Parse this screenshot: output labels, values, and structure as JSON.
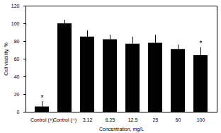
{
  "chart_data": {
    "type": "bar",
    "x_label": "Concentration, mg/L",
    "y_label": "Cell viability, %",
    "categories": [
      "Control (+)",
      "Control (−)",
      "3.12",
      "6.25",
      "12.5",
      "25",
      "50",
      "100"
    ],
    "values": [
      6,
      100,
      85,
      82,
      77,
      78,
      71,
      64
    ],
    "errors": [
      6,
      4,
      7,
      5,
      8,
      9,
      5,
      9
    ],
    "color": "#000000",
    "ylim": [
      0,
      120
    ],
    "yticks": [
      0,
      20,
      40,
      60,
      80,
      100,
      120
    ],
    "grid": false,
    "annotations": [
      {
        "category": "Control (+)",
        "text": "*"
      },
      {
        "category": "100",
        "text": "*"
      }
    ]
  }
}
